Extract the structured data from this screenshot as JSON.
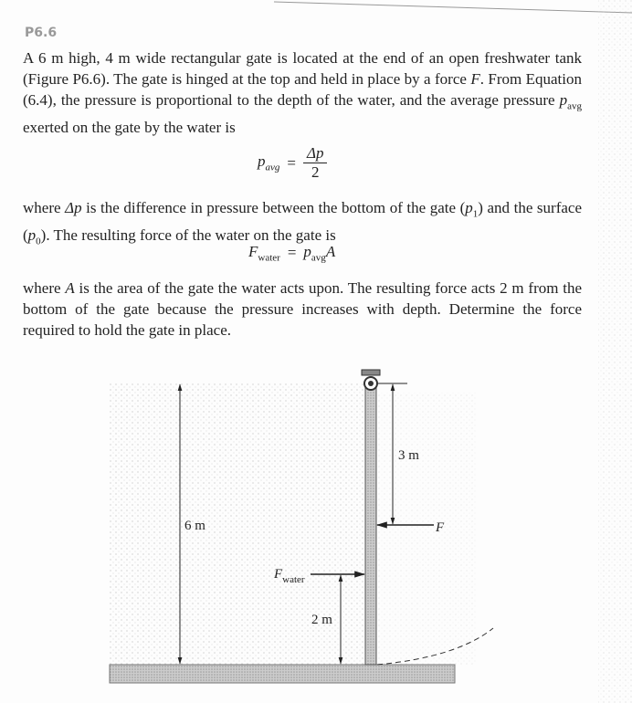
{
  "problem_id": "P6.6",
  "paragraphs": [
    [
      "A 6 m high, 4 m wide rectangular gate is located at the end of an open freshwater tank (Figure P6.6). The gate is hinged at the top and held in place by a force ",
      "F",
      ". From Equation (6.4), the pressure is proportional to the depth of the water, and the average pressure ",
      "p",
      "avg",
      " exerted on the gate by the water is"
    ],
    [
      "where ",
      "Δp",
      " is the difference in pressure between the bottom of the gate (",
      "p",
      "1",
      ") and the surface (",
      "p",
      "0",
      "). The resulting force of the water on the gate is"
    ],
    [
      "where ",
      "A",
      " is the area of the gate the water acts upon. The resulting force acts 2 m from the bottom of the gate because the pressure increases with depth. Determine the force required to hold the gate in place."
    ]
  ],
  "equations": [
    [
      "p",
      "avg",
      "=",
      "Δp",
      "2"
    ],
    [
      "F",
      "water",
      "=",
      "p",
      "avg",
      "A"
    ]
  ],
  "figure": {
    "height_label": "6 m",
    "force_height_label": "3 m",
    "force_label": "F",
    "water_force_label": [
      "F",
      "water"
    ],
    "water_force_height_label": "2 m"
  }
}
